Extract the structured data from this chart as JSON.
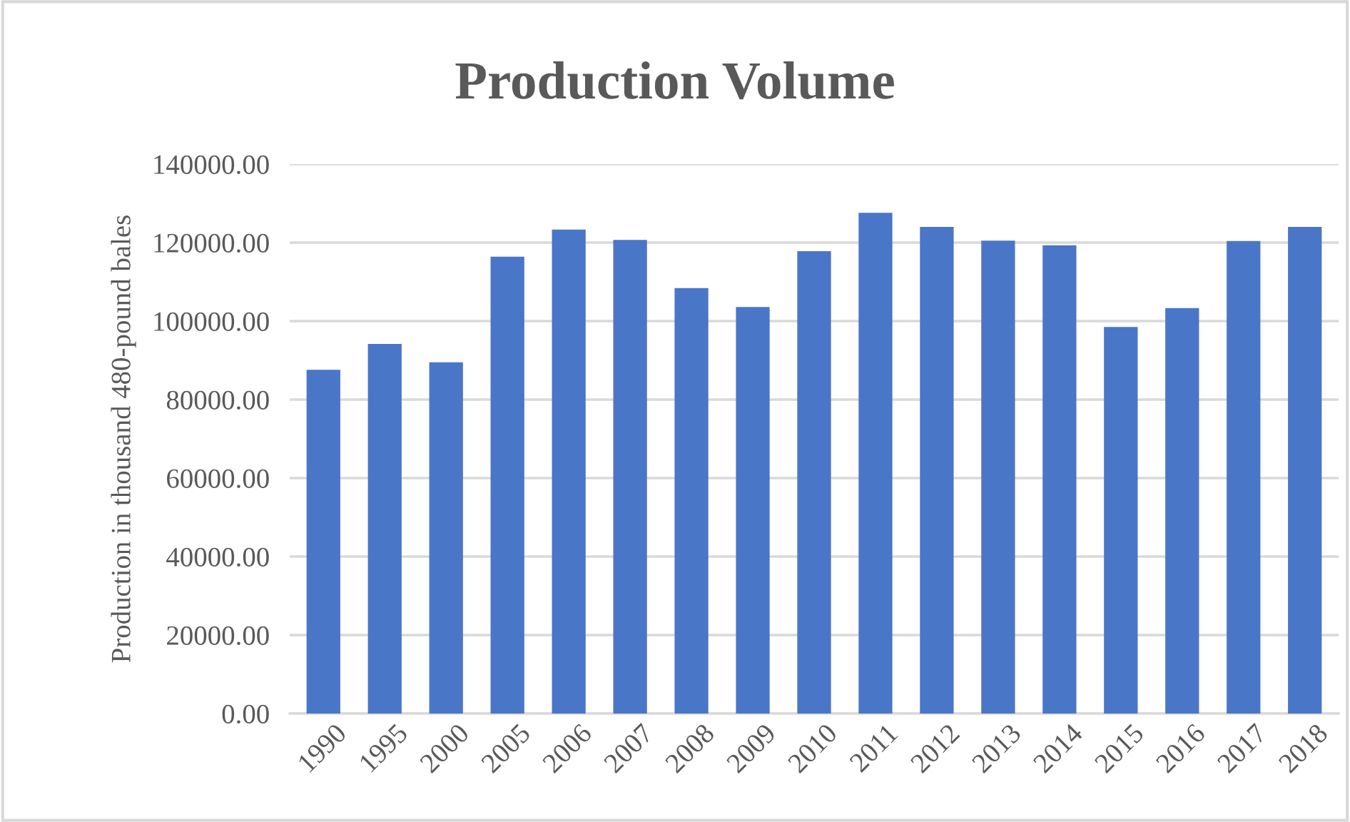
{
  "chart_data": {
    "type": "bar",
    "title": "Production Volume",
    "ylabel": "Production in thousand 480-pound bales",
    "categories": [
      "1990",
      "1995",
      "2000",
      "2005",
      "2006",
      "2007",
      "2008",
      "2009",
      "2010",
      "2011",
      "2012",
      "2013",
      "2014",
      "2015",
      "2016",
      "2017",
      "2018"
    ],
    "values": [
      87600,
      94200,
      89500,
      116400,
      123300,
      120700,
      108400,
      103600,
      117800,
      127600,
      124000,
      120500,
      119300,
      98500,
      103300,
      120400,
      124000
    ],
    "color": "#4a76c8",
    "ylim": [
      0,
      140000
    ],
    "yticks": [
      {
        "value": 0,
        "label": "0.00"
      },
      {
        "value": 20000,
        "label": "20000.00"
      },
      {
        "value": 40000,
        "label": "40000.00"
      },
      {
        "value": 60000,
        "label": "60000.00"
      },
      {
        "value": 80000,
        "label": "80000.00"
      },
      {
        "value": 100000,
        "label": "100000.00"
      },
      {
        "value": 120000,
        "label": "120000.00"
      },
      {
        "value": 140000,
        "label": "140000.00"
      }
    ],
    "grid": "y",
    "legend": false
  }
}
